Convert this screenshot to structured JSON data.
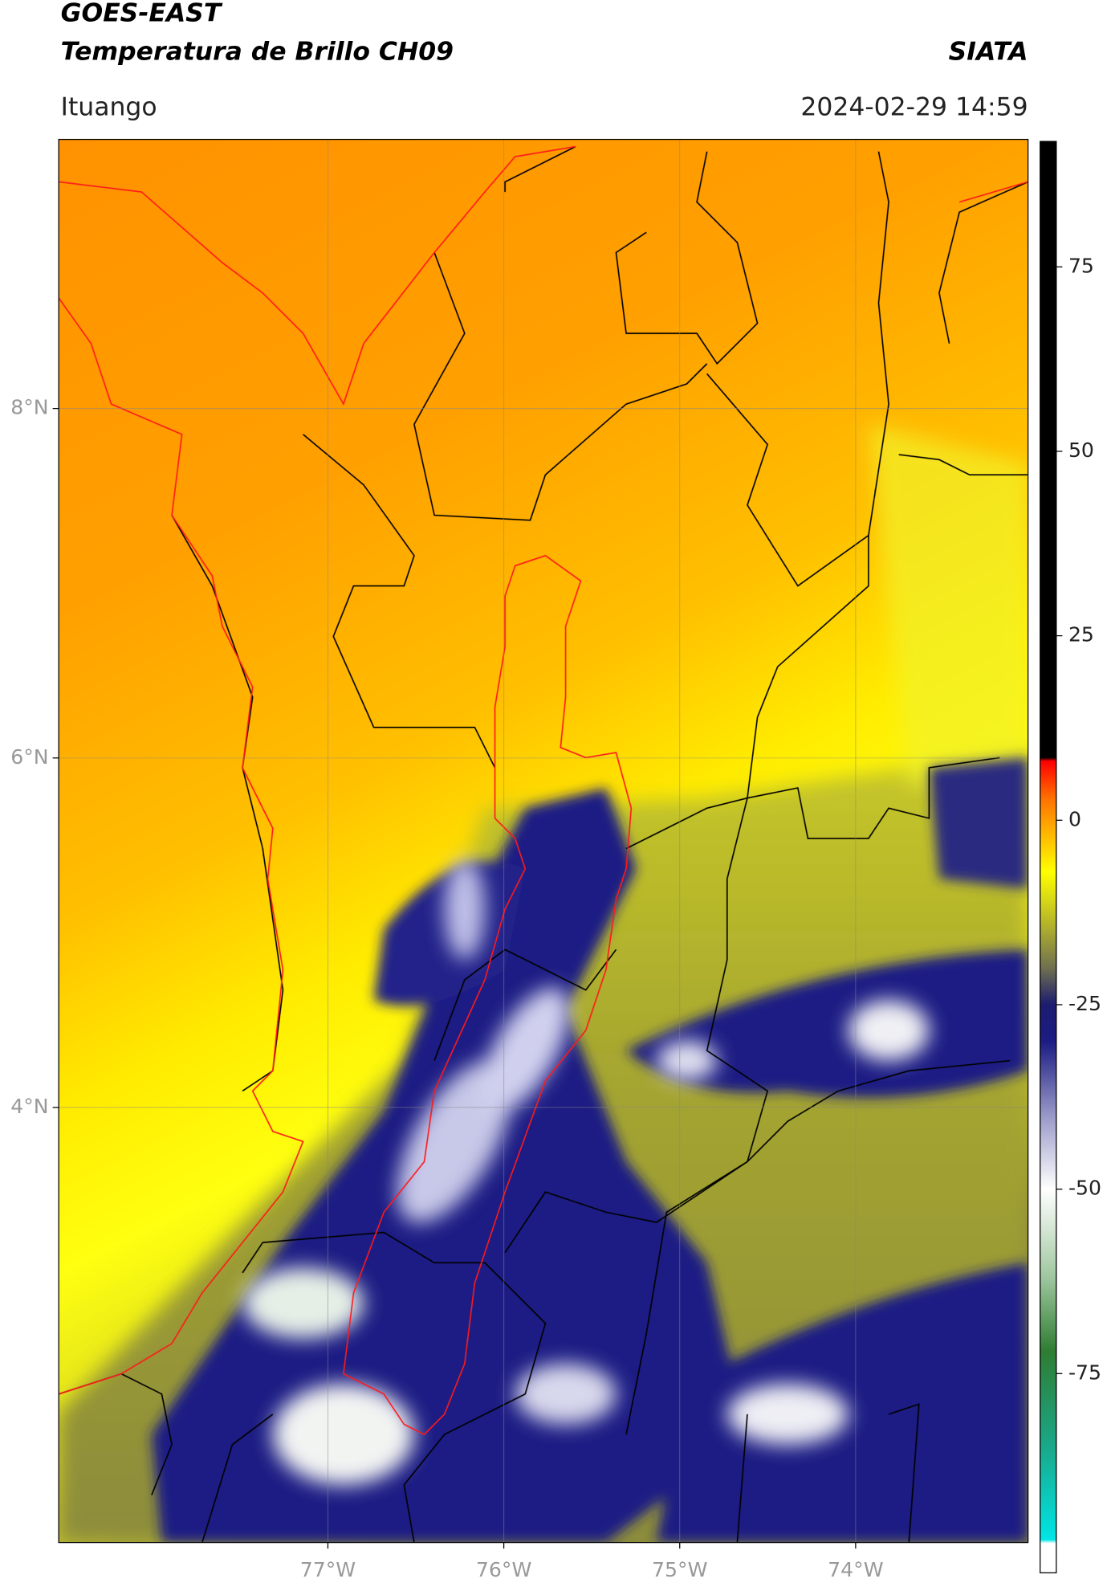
{
  "header": {
    "title": "GOES-EAST",
    "subtitle": "Temperatura de Brillo CH09",
    "source": "SIATA",
    "location": "Ituango",
    "datetime": "2024-02-29 14:59"
  },
  "map": {
    "xlim": [
      -78.53,
      -73.02
    ],
    "ylim": [
      1.51,
      9.54
    ],
    "xticks": [
      {
        "value": -77,
        "label": "77°W"
      },
      {
        "value": -76,
        "label": "76°W"
      },
      {
        "value": -75,
        "label": "75°W"
      },
      {
        "value": -74,
        "label": "74°W"
      }
    ],
    "yticks": [
      {
        "value": 8,
        "label": "8°N"
      },
      {
        "value": 6,
        "label": "6°N"
      },
      {
        "value": 4,
        "label": "4°N"
      }
    ],
    "grid": true
  },
  "colorbar": {
    "lim": [
      -102,
      92
    ],
    "ticks": [
      75,
      50,
      25,
      0,
      -25,
      -50,
      -75
    ],
    "stops": [
      {
        "value": -102,
        "color": "#ffffff"
      },
      {
        "value": -98,
        "color": "#ffffff"
      },
      {
        "value": -97.5,
        "color": "#00e5e5"
      },
      {
        "value": -85,
        "color": "#1aa88a"
      },
      {
        "value": -72,
        "color": "#2e7d32"
      },
      {
        "value": -62,
        "color": "#9fc79f"
      },
      {
        "value": -50,
        "color": "#ffffff"
      },
      {
        "value": -40,
        "color": "#9898c8"
      },
      {
        "value": -30,
        "color": "#1c1c84"
      },
      {
        "value": -25,
        "color": "#1c1c70"
      },
      {
        "value": -20,
        "color": "#707050"
      },
      {
        "value": -14,
        "color": "#b5b52a"
      },
      {
        "value": -7,
        "color": "#ffff00"
      },
      {
        "value": 0,
        "color": "#ff9c00"
      },
      {
        "value": 3,
        "color": "#ff7000"
      },
      {
        "value": 8,
        "color": "#ff0000"
      },
      {
        "value": 8.5,
        "color": "#000000"
      },
      {
        "value": 92,
        "color": "#000000"
      }
    ]
  }
}
